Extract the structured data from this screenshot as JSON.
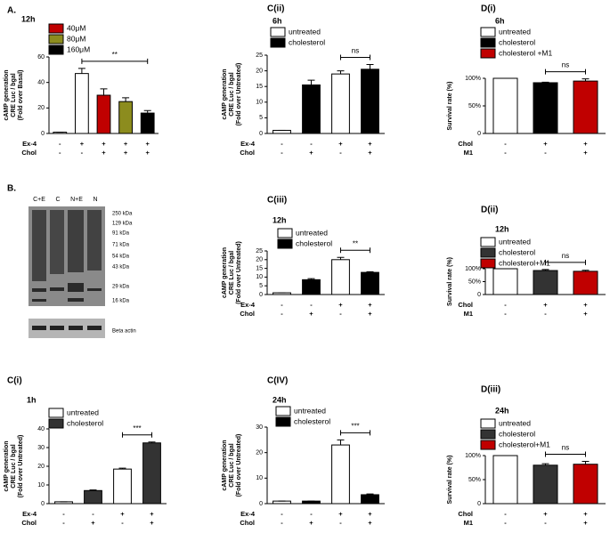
{
  "chart_data": [
    {
      "type": "bar",
      "label": "A.",
      "subtitle": "12h",
      "y_label": [
        "cAMP generation",
        "CRE Luc / bgal",
        "(Fold over Basal)"
      ],
      "legend": [
        {
          "name": "40μM",
          "color": "#c00000"
        },
        {
          "name": "80μM",
          "color": "#8c8c1e"
        },
        {
          "name": "160μM",
          "color": "#000000"
        }
      ],
      "values": [
        1,
        47,
        30,
        25,
        16
      ],
      "errors": [
        0,
        4,
        5,
        3,
        2
      ],
      "colors": [
        "#ffffff",
        "#ffffff",
        "#c00000",
        "#8c8c1e",
        "#000000"
      ],
      "ylim": [
        0,
        60
      ],
      "yticks": [
        0,
        20,
        40,
        60
      ],
      "conditions": [
        {
          "name": "Ex-4",
          "values": [
            "-",
            "+",
            "+",
            "+",
            "+"
          ]
        },
        {
          "name": "Chol",
          "values": [
            "-",
            "-",
            "+",
            "+",
            "+"
          ]
        }
      ],
      "significance": {
        "text": "**",
        "bars": [
          1,
          4
        ]
      }
    },
    {
      "type": "bar",
      "label": "C(ii)",
      "subtitle": "6h",
      "y_label": [
        "cAMP generation",
        "CRE Luc / bgal",
        "(Fold over Untreated)"
      ],
      "legend": [
        {
          "name": "untreated",
          "color": "#ffffff"
        },
        {
          "name": "cholesterol",
          "color": "#000000"
        }
      ],
      "values": [
        1,
        15.5,
        19,
        20.5
      ],
      "errors": [
        0,
        1.5,
        1,
        1.5
      ],
      "colors": [
        "#ffffff",
        "#000000",
        "#ffffff",
        "#000000"
      ],
      "ylim": [
        0,
        25
      ],
      "yticks": [
        0,
        5,
        10,
        15,
        20,
        25
      ],
      "conditions": [
        {
          "name": "Ex-4",
          "values": [
            "-",
            "-",
            "+",
            "+"
          ]
        },
        {
          "name": "Chol",
          "values": [
            "-",
            "+",
            "-",
            "+"
          ]
        }
      ],
      "significance": {
        "text": "ns",
        "bars": [
          2,
          3
        ]
      }
    },
    {
      "type": "bar",
      "label": "D(i)",
      "subtitle": "6h",
      "y_label": [
        "Survival rate (%)"
      ],
      "legend": [
        {
          "name": "untreated",
          "color": "#ffffff"
        },
        {
          "name": "cholesterol",
          "color": "#000000"
        },
        {
          "name": "cholesterol +M1",
          "color": "#c00000"
        }
      ],
      "values": [
        100,
        92,
        95
      ],
      "errors": [
        0,
        1,
        4
      ],
      "colors": [
        "#ffffff",
        "#000000",
        "#c00000"
      ],
      "ylim": [
        0,
        100
      ],
      "yticks": [
        0,
        {
          "value": 50,
          "label": "50%"
        },
        {
          "value": 100,
          "label": "100%"
        }
      ],
      "conditions": [
        {
          "name": "Chol",
          "values": [
            "-",
            "+",
            "+"
          ]
        },
        {
          "name": "M1",
          "values": [
            "-",
            "-",
            "+"
          ]
        }
      ],
      "significance": {
        "text": "ns",
        "bars": [
          1,
          2
        ]
      }
    },
    {
      "type": "bar",
      "label": "C(iii)",
      "subtitle": "12h",
      "y_label": [
        "cAMP generation",
        "CRE Luc / bgal",
        "(Fold over Untreated)"
      ],
      "legend": [
        {
          "name": "untreated",
          "color": "#ffffff"
        },
        {
          "name": "cholesterol",
          "color": "#000000"
        }
      ],
      "values": [
        1,
        8.5,
        20,
        12.7
      ],
      "errors": [
        0,
        0.6,
        1.3,
        0.4
      ],
      "colors": [
        "#ffffff",
        "#000000",
        "#ffffff",
        "#000000"
      ],
      "ylim": [
        0,
        25
      ],
      "yticks": [
        0,
        5,
        10,
        15,
        20,
        25
      ],
      "conditions": [
        {
          "name": "Ex-4",
          "values": [
            "-",
            "-",
            "+",
            "+"
          ]
        },
        {
          "name": "Chol",
          "values": [
            "-",
            "+",
            "-",
            "+"
          ]
        }
      ],
      "significance": {
        "text": "**",
        "bars": [
          2,
          3
        ]
      }
    },
    {
      "type": "bar",
      "label": "D(ii)",
      "subtitle": "12h",
      "y_label": [
        "Survival rate (%)"
      ],
      "legend": [
        {
          "name": "untreated",
          "color": "#ffffff"
        },
        {
          "name": "cholesterol",
          "color": "#333333"
        },
        {
          "name": "cholesterol+M1",
          "color": "#c00000"
        }
      ],
      "values": [
        100,
        93,
        90
      ],
      "errors": [
        0,
        4,
        4
      ],
      "colors": [
        "#ffffff",
        "#333333",
        "#c00000"
      ],
      "ylim": [
        0,
        100
      ],
      "yticks": [
        0,
        {
          "value": 50,
          "label": "50%"
        },
        {
          "value": 100,
          "label": "100%"
        }
      ],
      "conditions": [
        {
          "name": "Chol",
          "values": [
            "-",
            "+",
            "+"
          ]
        },
        {
          "name": "M1",
          "values": [
            "-",
            "-",
            "+"
          ]
        }
      ],
      "significance": {
        "text": "ns",
        "bars": [
          1,
          2
        ]
      }
    },
    {
      "type": "bar",
      "label": "C(i)",
      "subtitle": "1h",
      "y_label": [
        "cAMP generation",
        "CRE Luc / bgal",
        "(Fold over Untreated)"
      ],
      "legend": [
        {
          "name": "untreated",
          "color": "#ffffff"
        },
        {
          "name": "cholesterol",
          "color": "#333333"
        }
      ],
      "values": [
        1,
        7,
        18.5,
        32.5
      ],
      "errors": [
        0,
        0.3,
        0.5,
        0.5
      ],
      "colors": [
        "#ffffff",
        "#333333",
        "#ffffff",
        "#333333"
      ],
      "ylim": [
        0,
        40
      ],
      "yticks": [
        0,
        10,
        20,
        30,
        40
      ],
      "conditions": [
        {
          "name": "Ex-4",
          "values": [
            "-",
            "-",
            "+",
            "+"
          ]
        },
        {
          "name": "Chol",
          "values": [
            "-",
            "+",
            "-",
            "+"
          ]
        }
      ],
      "significance": {
        "text": "***",
        "bars": [
          2,
          3
        ]
      }
    },
    {
      "type": "bar",
      "label": "C(IV)",
      "subtitle": "24h",
      "y_label": [
        "cAMP generation",
        "CRE Luc / bgal",
        "(Fold over Untreated)"
      ],
      "legend": [
        {
          "name": "untreated",
          "color": "#ffffff"
        },
        {
          "name": "cholesterol",
          "color": "#000000"
        }
      ],
      "values": [
        1,
        1,
        23,
        3.5
      ],
      "errors": [
        0,
        0,
        2,
        0.3
      ],
      "colors": [
        "#ffffff",
        "#000000",
        "#ffffff",
        "#000000"
      ],
      "ylim": [
        0,
        30
      ],
      "yticks": [
        0,
        10,
        20,
        30
      ],
      "conditions": [
        {
          "name": "Ex-4",
          "values": [
            "-",
            "-",
            "+",
            "+"
          ]
        },
        {
          "name": "Chol",
          "values": [
            "-",
            "+",
            "-",
            "+"
          ]
        }
      ],
      "significance": {
        "text": "***",
        "bars": [
          2,
          3
        ]
      }
    },
    {
      "type": "bar",
      "label": "D(iii)",
      "subtitle": "24h",
      "y_label": [
        "Survival rate (%)"
      ],
      "legend": [
        {
          "name": "untreated",
          "color": "#ffffff"
        },
        {
          "name": "cholesterol",
          "color": "#333333"
        },
        {
          "name": "cholesterol+M1",
          "color": "#c00000"
        }
      ],
      "values": [
        100,
        80,
        82
      ],
      "errors": [
        0,
        3,
        6
      ],
      "colors": [
        "#ffffff",
        "#333333",
        "#c00000"
      ],
      "ylim": [
        0,
        100
      ],
      "yticks": [
        0,
        {
          "value": 50,
          "label": "50%"
        },
        {
          "value": 100,
          "label": "100%"
        }
      ],
      "conditions": [
        {
          "name": "Chol",
          "values": [
            "-",
            "+",
            "+"
          ]
        },
        {
          "name": "M1",
          "values": [
            "-",
            "-",
            "+"
          ]
        }
      ],
      "significance": {
        "text": "ns",
        "bars": [
          1,
          2
        ]
      }
    }
  ],
  "blot": {
    "label": "B.",
    "lanes": [
      "C+E",
      "C",
      "N+E",
      "N"
    ],
    "markers": [
      "250 kDa",
      "129 kDa",
      "91 kDa",
      "71 kDa",
      "54 kDa",
      "43 kDa",
      "29 kDa",
      "16 kDa"
    ],
    "loading_control": "Beta actin"
  }
}
